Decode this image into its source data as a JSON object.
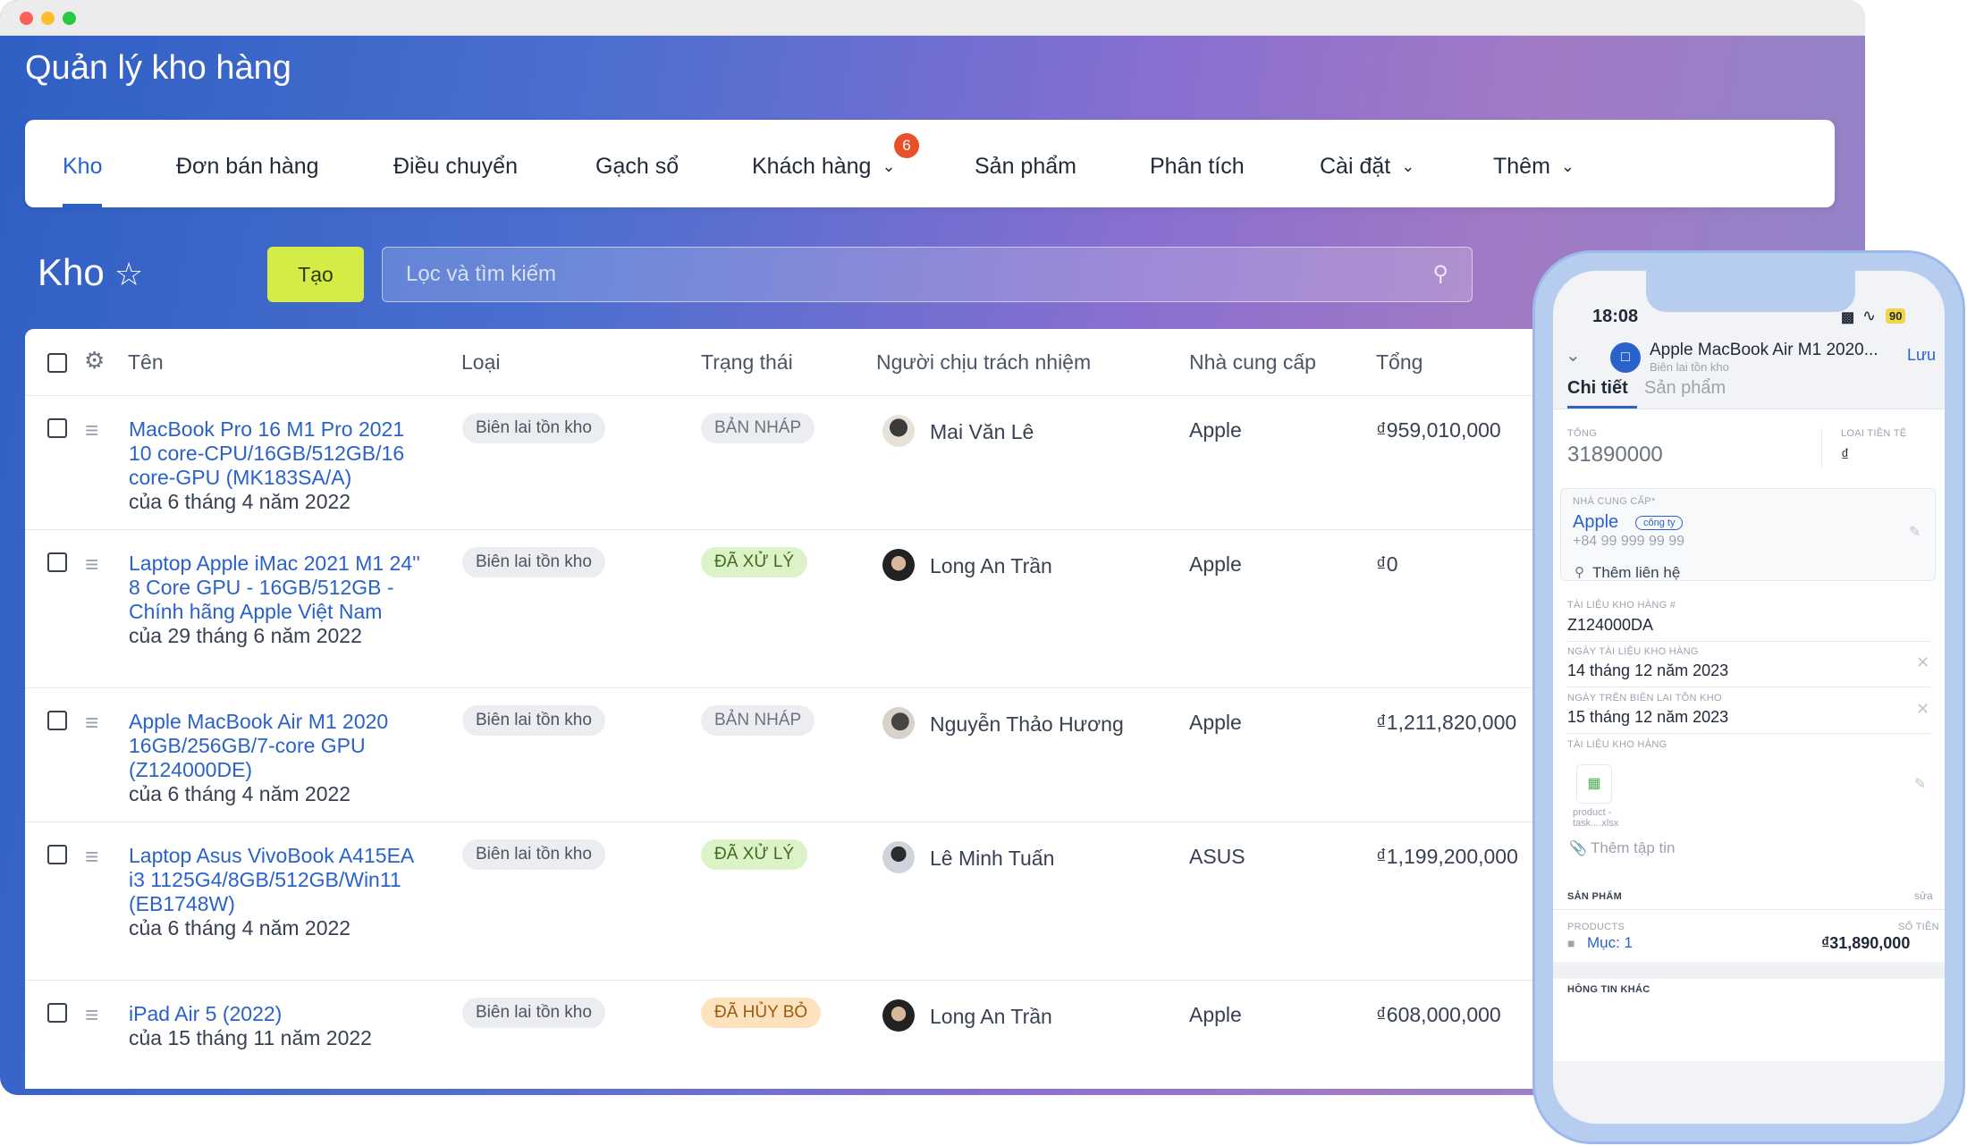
{
  "app": {
    "title": "Quản lý kho hàng"
  },
  "nav": {
    "items": [
      {
        "label": "Kho"
      },
      {
        "label": "Đơn bán hàng"
      },
      {
        "label": "Điều chuyển"
      },
      {
        "label": "Gạch sổ"
      },
      {
        "label": "Khách hàng"
      },
      {
        "label": "Sản phẩm"
      },
      {
        "label": "Phân tích"
      },
      {
        "label": "Cài đặt"
      },
      {
        "label": "Thêm"
      }
    ],
    "customers_badge": "6"
  },
  "page": {
    "title": "Kho",
    "create_label": "Tạo",
    "search_placeholder": "Lọc và tìm kiếm"
  },
  "table": {
    "columns": [
      "Tên",
      "Loại",
      "Trạng thái",
      "Người chịu trách nhiệm",
      "Nhà cung cấp",
      "Tổng"
    ],
    "rows": [
      {
        "name": "MacBook Pro 16 M1 Pro 2021 10 core-CPU/16GB/512GB/16 core-GPU (MK183SA/A)",
        "date": "của 6 tháng 4 năm 2022",
        "type": "Biên lai tồn kho",
        "status": "BẢN NHÁP",
        "owner": "Mai Văn Lê",
        "supplier": "Apple",
        "total": "₫959,010,000"
      },
      {
        "name": "Laptop Apple iMac 2021 M1 24'' 8 Core GPU - 16GB/512GB - Chính hãng Apple Việt Nam",
        "date": "của 29 tháng 6 năm 2022",
        "type": "Biên lai tồn kho",
        "status": "ĐÃ XỬ LÝ",
        "owner": "Long An Trần",
        "supplier": "Apple",
        "total": "₫0"
      },
      {
        "name": "Apple MacBook Air M1 2020 16GB/256GB/7-core GPU (Z124000DE)",
        "date": "của 6 tháng 4 năm 2022",
        "type": "Biên lai tồn kho",
        "status": "BẢN NHÁP",
        "owner": "Nguyễn Thảo Hương",
        "supplier": "Apple",
        "total": "₫1,211,820,000"
      },
      {
        "name": "Laptop Asus VivoBook A415EA i3 1125G4/8GB/512GB/Win11 (EB1748W)",
        "date": "của 6 tháng 4 năm 2022",
        "type": "Biên lai tồn kho",
        "status": "ĐÃ XỬ LÝ",
        "owner": "Lê Minh Tuấn",
        "supplier": "ASUS",
        "total": "₫1,199,200,000"
      },
      {
        "name": "iPad Air 5 (2022)",
        "date": "của 15 tháng 11 năm 2022",
        "type": "Biên lai tồn kho",
        "status": "ĐÃ HỦY BỎ",
        "owner": "Long An Trần",
        "supplier": "Apple",
        "total": "₫608,000,000"
      }
    ]
  },
  "phone": {
    "time": "18:08",
    "battery": "90",
    "doc_title": "Apple MacBook Air M1 2020...",
    "doc_subtitle": "Biên lai tồn kho",
    "save": "Lưu",
    "tabs": [
      "Chi tiết",
      "Sản phẩm"
    ],
    "total_label": "TỔNG",
    "total_value": "31890000",
    "currency_label": "LOẠI TIỀN TỆ",
    "currency_value": "₫",
    "supplier_label": "NHÀ CUNG CẤP*",
    "supplier_name": "Apple",
    "supplier_tag": "công ty",
    "supplier_phone": "+84 99 999 99 99",
    "add_contact": "Thêm liên hệ",
    "doc_no_label": "TÀI LIỆU KHO HÀNG #",
    "doc_no_value": "Z124000DA",
    "doc_date_label": "NGÀY TÀI LIỆU KHO HÀNG",
    "doc_date_value": "14  tháng 12  năm 2023",
    "receipt_date_label": "NGÀY TRÊN BIÊN LAI TỒN KHO",
    "receipt_date_value": "15  tháng 12  năm 2023",
    "attach_label": "TÀI LIỆU KHO HÀNG",
    "file_name_1": "product -",
    "file_name_2": "task....xlsx",
    "add_file": "Thêm tập tin",
    "products_header": "SẢN PHẨM",
    "edit": "sửa",
    "products_label": "PRODUCTS",
    "amount_label": "SỐ TIỀN",
    "item_label": "Mục: 1",
    "item_amount": "₫31,890,000",
    "other_info": "HÔNG TIN KHÁC"
  },
  "colors": {
    "accent": "#2a62c9",
    "create": "#d4ec45",
    "badge": "#e8502a"
  }
}
